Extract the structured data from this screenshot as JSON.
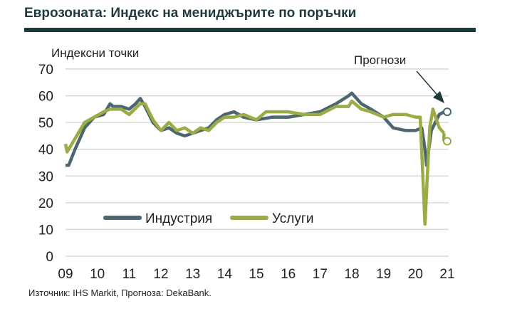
{
  "title": "Еврозоната: Индекс на мениджърите по поръчки",
  "source": "Източник: IHS Markit, Прогноза: DekaBank.",
  "chart_data": {
    "type": "line",
    "ylabel": "Индексни точки",
    "ylim": [
      0,
      70
    ],
    "yticks": [
      0,
      10,
      20,
      30,
      40,
      50,
      60,
      70
    ],
    "xlim": [
      2009,
      2021
    ],
    "xticks": [
      "09",
      "10",
      "11",
      "12",
      "13",
      "14",
      "15",
      "16",
      "17",
      "18",
      "19",
      "20",
      "21"
    ],
    "grid": true,
    "legend": "bottom-left",
    "annotation": "Прогнози",
    "series": [
      {
        "name": "Индустрия",
        "color": "#4d6670",
        "forecast": {
          "x": 2021.0,
          "y": 54
        },
        "x": [
          2009.0,
          2009.1,
          2009.3,
          2009.6,
          2009.9,
          2010.2,
          2010.4,
          2010.5,
          2010.75,
          2011.0,
          2011.2,
          2011.35,
          2011.5,
          2011.75,
          2012.0,
          2012.25,
          2012.5,
          2012.75,
          2013.0,
          2013.25,
          2013.5,
          2013.75,
          2014.0,
          2014.3,
          2014.6,
          2015.0,
          2015.5,
          2016.0,
          2016.5,
          2017.0,
          2017.5,
          2017.9,
          2018.0,
          2018.3,
          2018.6,
          2019.0,
          2019.3,
          2019.7,
          2020.0,
          2020.2,
          2020.3,
          2020.35,
          2020.5,
          2020.75,
          2020.9
        ],
        "y": [
          34,
          34,
          40,
          48,
          52,
          53,
          57,
          56,
          56,
          55,
          57,
          59,
          56,
          50,
          47,
          48,
          46,
          45,
          46,
          47,
          48,
          51,
          53,
          54,
          52,
          51,
          52,
          52,
          53,
          54,
          57,
          60,
          61,
          57,
          55,
          52,
          48,
          47,
          47,
          48,
          40,
          34,
          47,
          53,
          54
        ]
      },
      {
        "name": "Услуги",
        "color": "#9aac45",
        "forecast": {
          "x": 2021.0,
          "y": 43
        },
        "x": [
          2009.0,
          2009.05,
          2009.3,
          2009.6,
          2009.9,
          2010.2,
          2010.4,
          2010.75,
          2011.0,
          2011.35,
          2011.5,
          2011.75,
          2012.0,
          2012.25,
          2012.5,
          2012.75,
          2013.0,
          2013.25,
          2013.5,
          2013.75,
          2014.0,
          2014.3,
          2014.6,
          2015.0,
          2015.3,
          2016.0,
          2016.5,
          2017.0,
          2017.5,
          2017.9,
          2018.0,
          2018.3,
          2018.6,
          2019.0,
          2019.3,
          2019.7,
          2020.0,
          2020.15,
          2020.3,
          2020.45,
          2020.55,
          2020.75,
          2020.9
        ],
        "y": [
          42,
          39,
          44,
          50,
          52,
          54,
          55,
          55,
          53,
          57,
          57,
          51,
          47,
          50,
          47,
          48,
          46,
          48,
          47,
          50,
          52,
          52,
          53,
          51,
          54,
          54,
          53,
          53,
          56,
          56,
          58,
          55,
          54,
          52,
          53,
          53,
          52,
          52,
          12,
          48,
          55,
          48,
          46
        ]
      }
    ]
  }
}
